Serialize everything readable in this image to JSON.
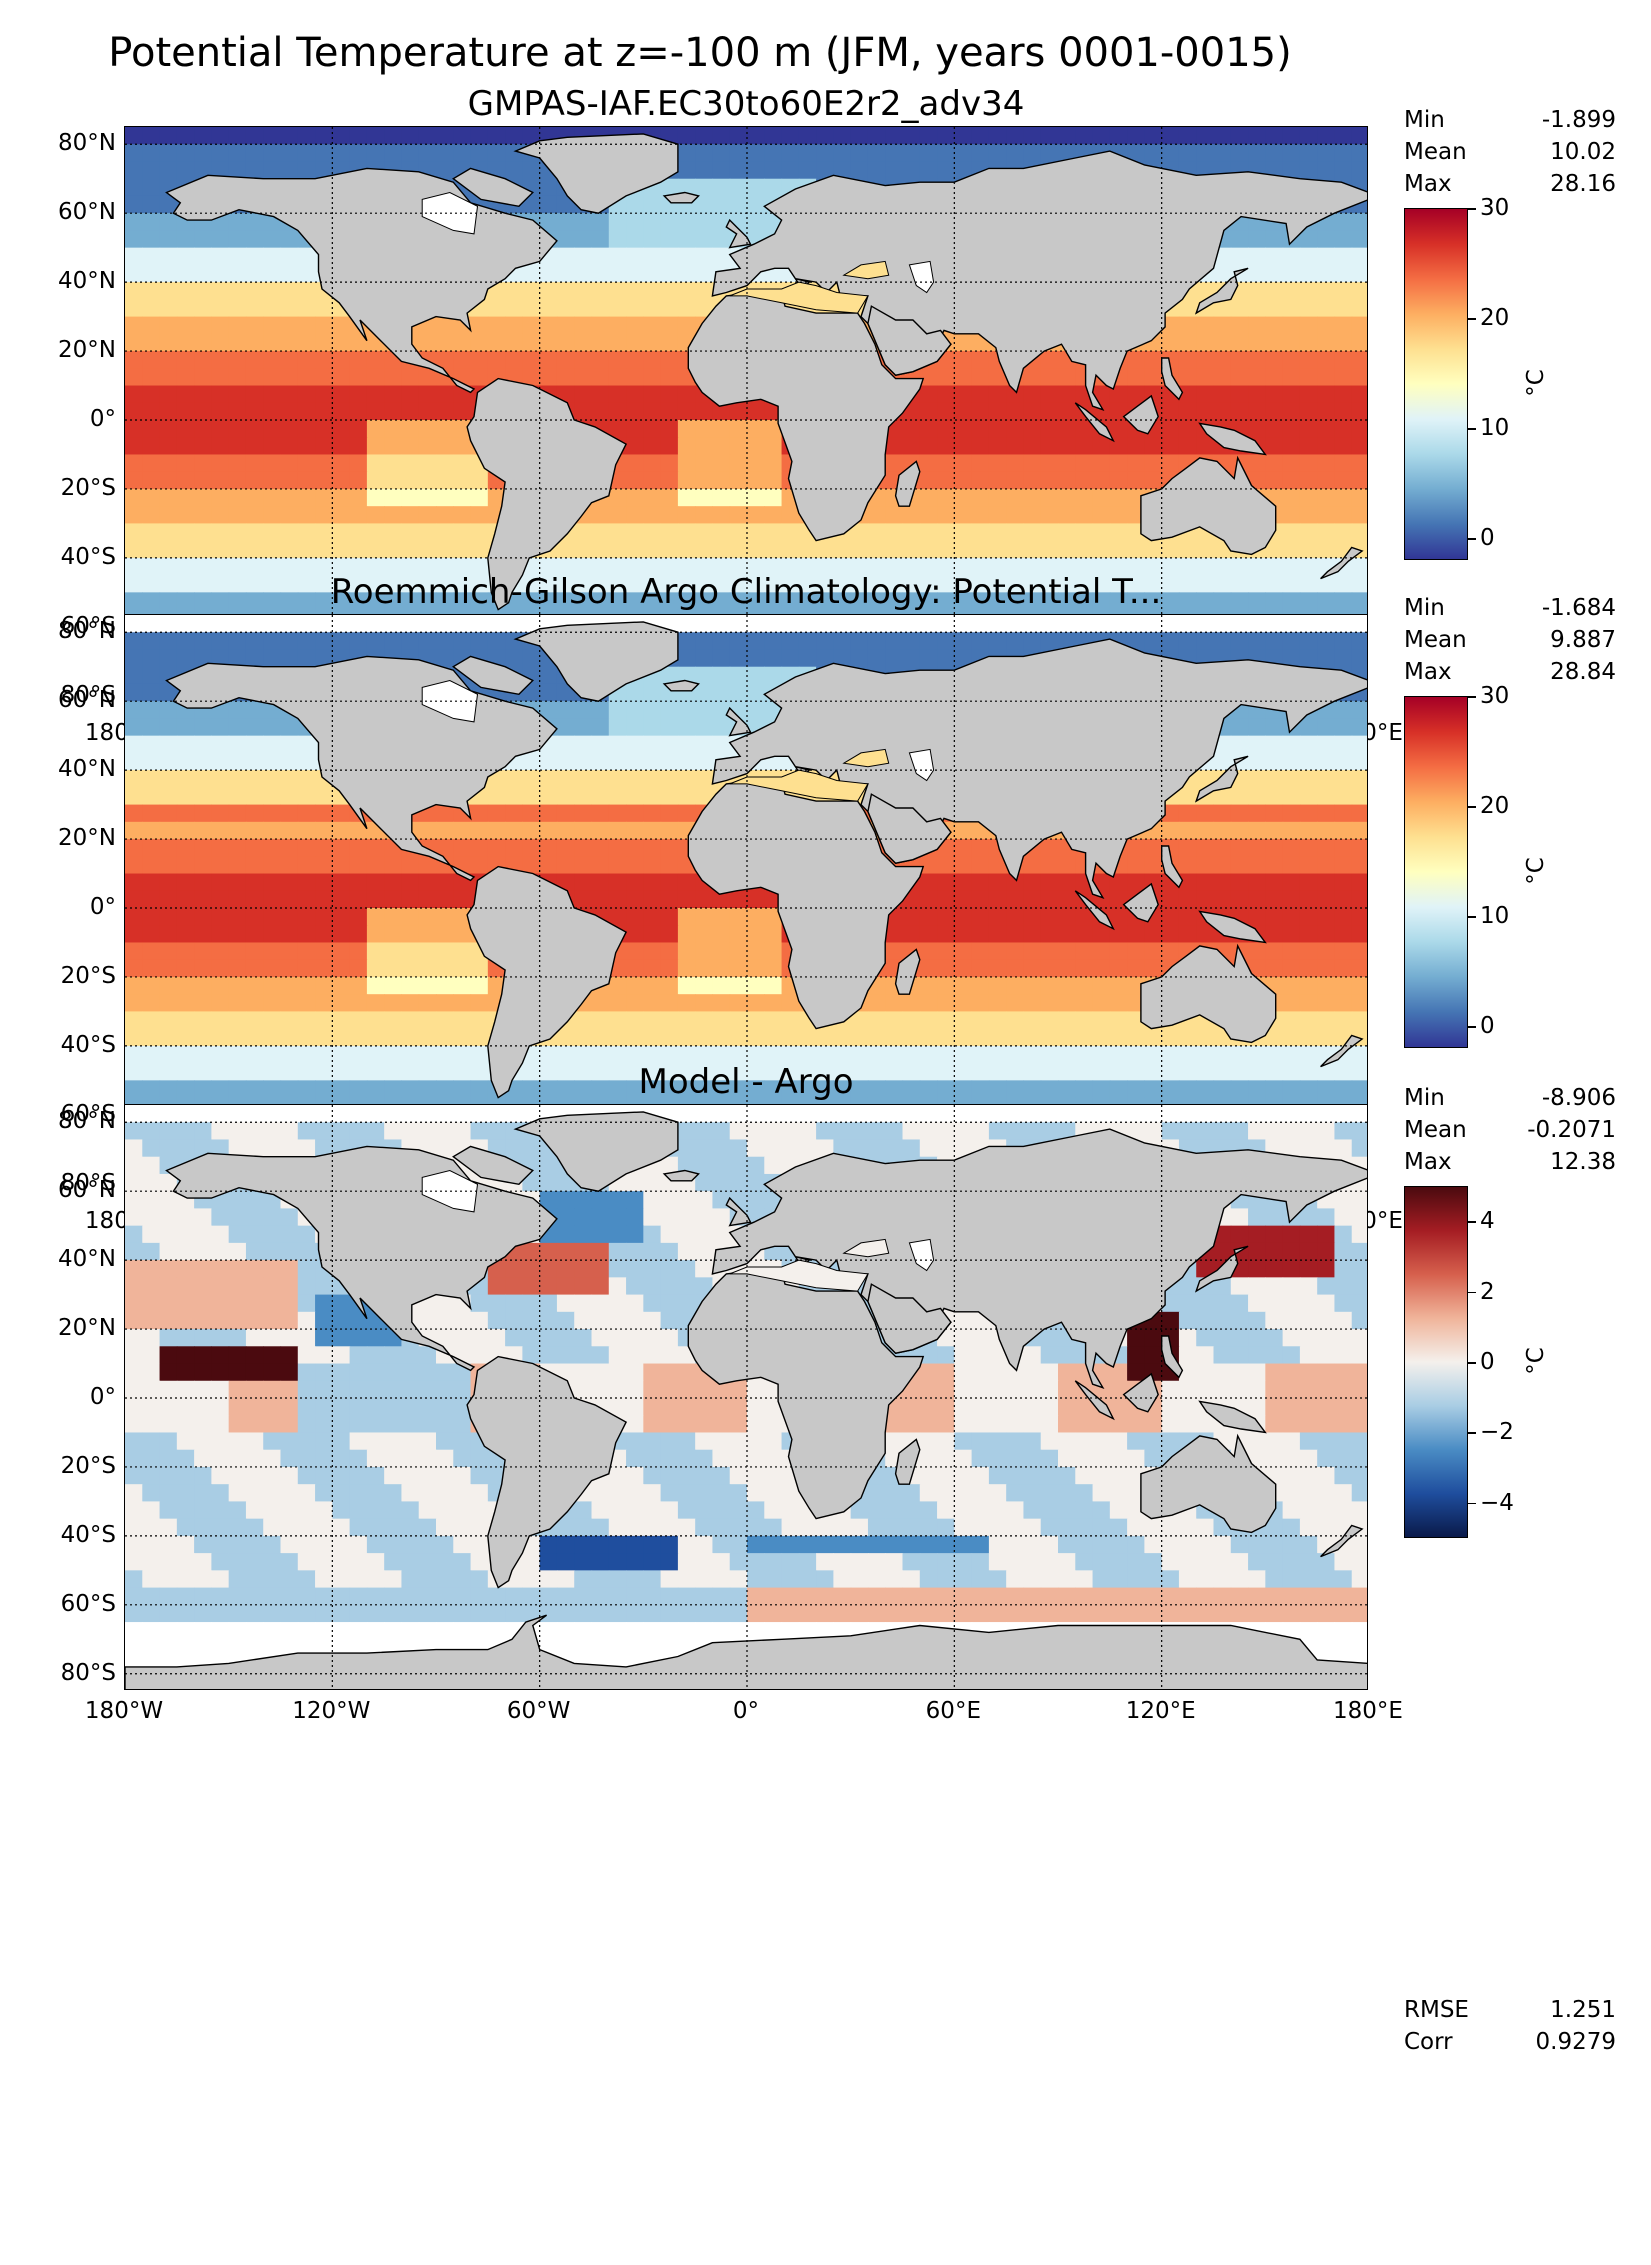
{
  "figure_title": "Potential Temperature at z=-100 m (JFM, years 0001-0015)",
  "lat_ticks": [
    "80°N",
    "60°N",
    "40°N",
    "20°N",
    "0°",
    "20°S",
    "40°S",
    "60°S",
    "80°S"
  ],
  "lon_ticks": [
    "180°W",
    "120°W",
    "60°W",
    "0°",
    "60°E",
    "120°E",
    "180°E"
  ],
  "colors": {
    "land": "#c8c8c8",
    "missing": "#ffffff",
    "temp_colormap": [
      "#313695",
      "#4575b4",
      "#74add1",
      "#abd9e9",
      "#e0f3f8",
      "#ffffbf",
      "#fee090",
      "#fdae61",
      "#f46d43",
      "#d73027",
      "#a50026"
    ],
    "diff_colormap": [
      "#0a1a4a",
      "#1f4e9e",
      "#4a8cc4",
      "#a9cde4",
      "#f4f0ec",
      "#f0b49a",
      "#d6604d",
      "#a51d23",
      "#4b0a0f"
    ]
  },
  "panels": [
    {
      "title": "GMPAS-IAF.EC30to60E2r2_adv34",
      "stats": {
        "min_label": "Min",
        "min": "-1.899",
        "mean_label": "Mean",
        "mean": "10.02",
        "max_label": "Max",
        "max": "28.16"
      },
      "colorbar": {
        "ticks": [
          "30",
          "20",
          "10",
          "0"
        ],
        "unit": "°C",
        "range": [
          -2,
          30
        ]
      }
    },
    {
      "title": "Roemmich-Gilson Argo Climatology: Potential T...",
      "stats": {
        "min_label": "Min",
        "min": "-1.684",
        "mean_label": "Mean",
        "mean": "9.887",
        "max_label": "Max",
        "max": "28.84"
      },
      "colorbar": {
        "ticks": [
          "30",
          "20",
          "10",
          "0"
        ],
        "unit": "°C",
        "range": [
          -2,
          30
        ]
      }
    },
    {
      "title": "Model - Argo",
      "stats": {
        "min_label": "Min",
        "min": "-8.906",
        "mean_label": "Mean",
        "mean": "-0.2071",
        "max_label": "Max",
        "max": "12.38"
      },
      "colorbar": {
        "ticks": [
          "4",
          "2",
          "0",
          "−2",
          "−4"
        ],
        "unit": "°C",
        "range": [
          -5,
          5
        ]
      },
      "metrics": {
        "rmse_label": "RMSE",
        "rmse": "1.251",
        "corr_label": "Corr",
        "corr": "0.9279"
      }
    }
  ],
  "chart_data": [
    {
      "type": "heatmap",
      "title": "GMPAS-IAF.EC30to60E2r2_adv34",
      "x_ticks": [
        "180°W",
        "120°W",
        "60°W",
        "0°",
        "60°E",
        "120°E",
        "180°E"
      ],
      "y_ticks": [
        "80°N",
        "60°N",
        "40°N",
        "20°N",
        "0°",
        "20°S",
        "40°S",
        "60°S",
        "80°S"
      ],
      "xlim": [
        -180,
        180
      ],
      "ylim": [
        -85,
        85
      ],
      "grid": true,
      "colorbar_label": "°C",
      "colorbar_range": [
        -2,
        30
      ],
      "colorbar_ticks": [
        0,
        10,
        20,
        30
      ],
      "stats": {
        "Min": -1.899,
        "Mean": 10.02,
        "Max": 28.16
      }
    },
    {
      "type": "heatmap",
      "title": "Roemmich-Gilson Argo Climatology: Potential T...",
      "x_ticks": [
        "180°W",
        "120°W",
        "60°W",
        "0°",
        "60°E",
        "120°E",
        "180°E"
      ],
      "y_ticks": [
        "80°N",
        "60°N",
        "40°N",
        "20°N",
        "0°",
        "20°S",
        "40°S",
        "60°S",
        "80°S"
      ],
      "xlim": [
        -180,
        180
      ],
      "ylim": [
        -85,
        85
      ],
      "grid": true,
      "colorbar_label": "°C",
      "colorbar_range": [
        -2,
        30
      ],
      "colorbar_ticks": [
        0,
        10,
        20,
        30
      ],
      "stats": {
        "Min": -1.684,
        "Mean": 9.887,
        "Max": 28.84
      }
    },
    {
      "type": "heatmap",
      "title": "Model - Argo",
      "x_ticks": [
        "180°W",
        "120°W",
        "60°W",
        "0°",
        "60°E",
        "120°E",
        "180°E"
      ],
      "y_ticks": [
        "80°N",
        "60°N",
        "40°N",
        "20°N",
        "0°",
        "20°S",
        "40°S",
        "60°S",
        "80°S"
      ],
      "xlim": [
        -180,
        180
      ],
      "ylim": [
        -85,
        85
      ],
      "grid": true,
      "colorbar_label": "°C",
      "colorbar_range": [
        -5,
        5
      ],
      "colorbar_ticks": [
        -4,
        -2,
        0,
        2,
        4
      ],
      "stats": {
        "Min": -8.906,
        "Mean": -0.2071,
        "Max": 12.38,
        "RMSE": 1.251,
        "Corr": 0.9279
      }
    }
  ]
}
